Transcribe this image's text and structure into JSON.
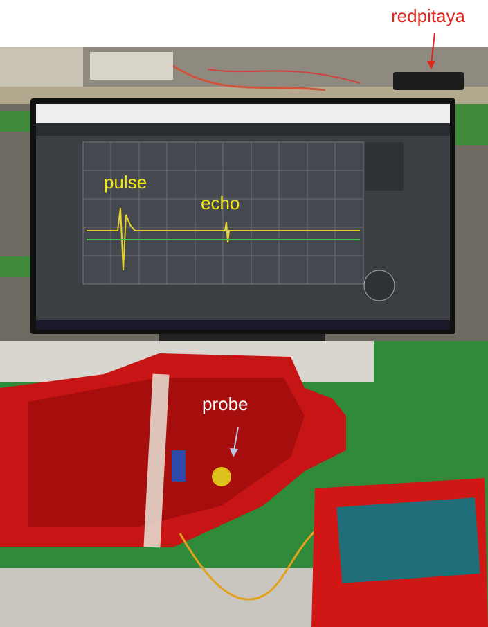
{
  "labels": {
    "device": "redpitaya",
    "pulse": "pulse",
    "echo": "echo",
    "probe": "probe"
  }
}
